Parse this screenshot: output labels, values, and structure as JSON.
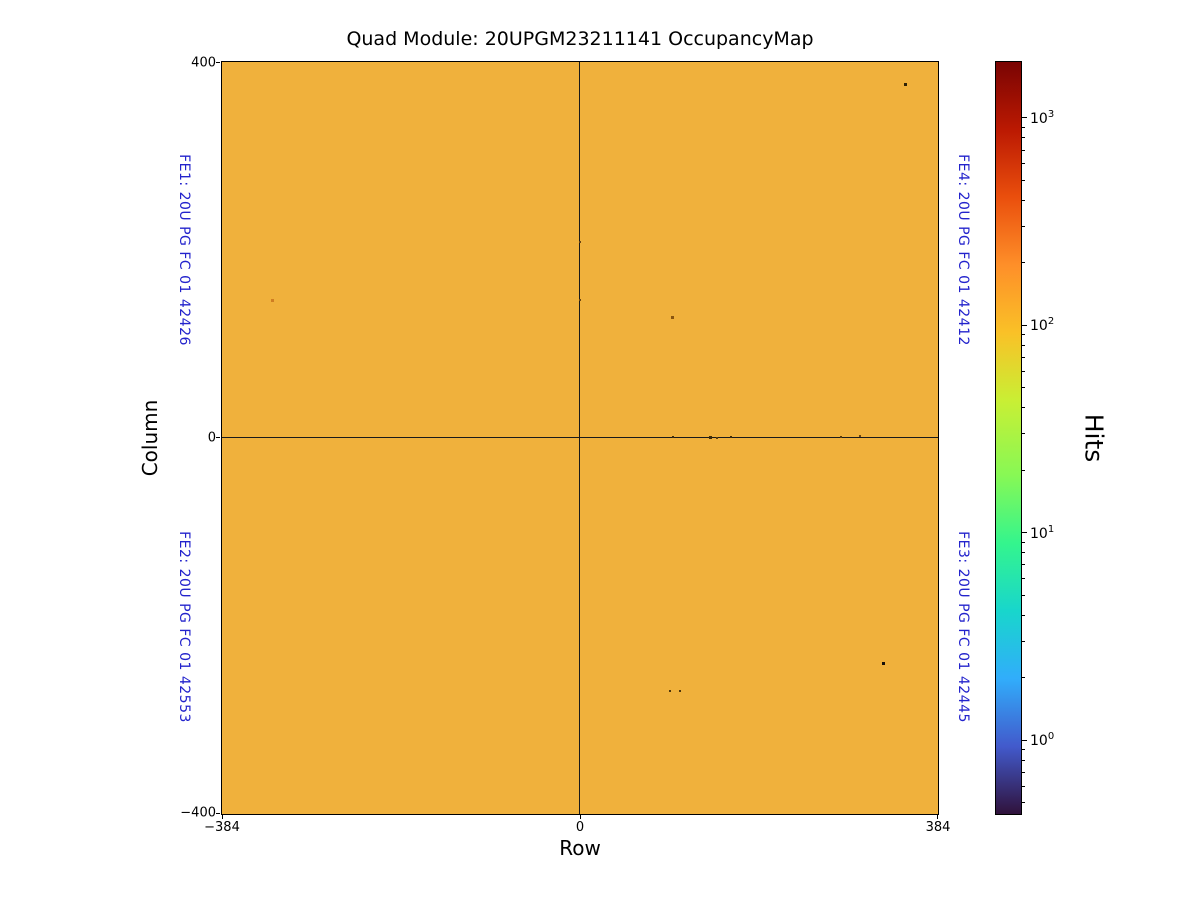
{
  "chart_data": {
    "type": "heatmap",
    "title": "Quad Module: 20UPGM23211141 OccupancyMap",
    "xlabel": "Row",
    "ylabel": "Column",
    "xlim": [
      -384,
      384
    ],
    "ylim": [
      -400,
      400
    ],
    "x_ticks": [
      {
        "value": -384,
        "label": "−384"
      },
      {
        "value": 0,
        "label": "0"
      },
      {
        "value": 384,
        "label": "384"
      }
    ],
    "y_ticks": [
      {
        "value": 400,
        "label": "400"
      },
      {
        "value": 0,
        "label": "0"
      },
      {
        "value": -400,
        "label": "−400"
      }
    ],
    "uniform_occupancy_hits": 100,
    "map_color": "#f0b13c",
    "axis_line_color": "#1a1a1a",
    "fe_label_color": "#2323cc",
    "fe_labels": [
      {
        "id": "FE1",
        "text": "FE1: 20U PG FC 01 42426",
        "side": "left",
        "quadrant": "top"
      },
      {
        "id": "FE2",
        "text": "FE2: 20U PG FC 01 42553",
        "side": "left",
        "quadrant": "bottom"
      },
      {
        "id": "FE4",
        "text": "FE4: 20U PG FC 01 42412",
        "side": "right",
        "quadrant": "top"
      },
      {
        "id": "FE3",
        "text": "FE3: 20U PG FC 01 42445",
        "side": "right",
        "quadrant": "bottom"
      }
    ],
    "colorbar": {
      "label": "Hits",
      "scale": "log",
      "vmin": 0.44,
      "vmax": 1860,
      "major_tick_base": "10",
      "major_ticks_exponents": [
        0,
        1,
        2,
        3
      ],
      "colormap": "turbo",
      "gradient_stops_bottom_to_top": [
        "#30123b",
        "#425acc",
        "#31adfb",
        "#18d6cc",
        "#34f58d",
        "#87f855",
        "#c9ef34",
        "#fac127",
        "#fe8f29",
        "#ea4f0d",
        "#bb1902",
        "#7a0403"
      ],
      "gradient_positions_pct": [
        0,
        9,
        18,
        27,
        36,
        45,
        55,
        64,
        73,
        82,
        91,
        100
      ]
    },
    "defects": [
      {
        "row": -330,
        "col": 146,
        "color": "#cf7d22",
        "size": 3
      },
      {
        "row": 99,
        "col": 128,
        "color": "#8a5510",
        "size": 3
      },
      {
        "row": 349,
        "col": 376,
        "color": "#2e2206",
        "size": 3
      },
      {
        "row": 326,
        "col": -240,
        "color": "#16100a",
        "size": 3
      },
      {
        "row": 96,
        "col": -269,
        "color": "#4f350a",
        "size": 2
      },
      {
        "row": 107,
        "col": -269,
        "color": "#4f350a",
        "size": 2
      },
      {
        "row": 100,
        "col": 1,
        "color": "#3f2c08",
        "size": 2
      },
      {
        "row": 140,
        "col": 1,
        "color": "#3f2c08",
        "size": 3
      },
      {
        "row": 147,
        "col": 0,
        "color": "#5a3c0a",
        "size": 2
      },
      {
        "row": 162,
        "col": 1,
        "color": "#3f2c08",
        "size": 2
      },
      {
        "row": 280,
        "col": 1,
        "color": "#5a3c0a",
        "size": 2
      },
      {
        "row": 300,
        "col": 2,
        "color": "#6b4410",
        "size": 2
      },
      {
        "row": 0,
        "col": 147,
        "color": "#6b4410",
        "size": 2
      },
      {
        "row": 0,
        "col": 209,
        "color": "#6b4410",
        "size": 2
      }
    ]
  }
}
